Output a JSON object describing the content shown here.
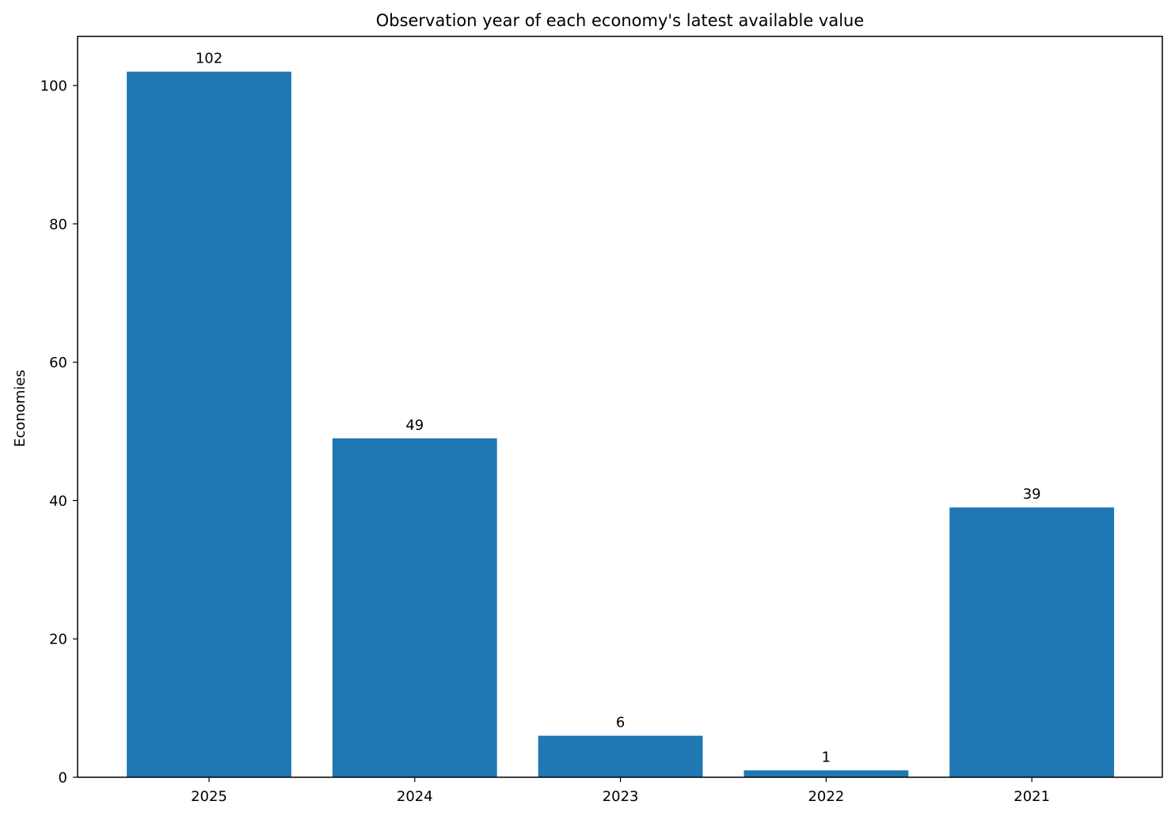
{
  "chart_data": {
    "type": "bar",
    "title": "Observation year of each economy's latest available value",
    "xlabel": "",
    "ylabel": "Economies",
    "categories": [
      "2025",
      "2024",
      "2023",
      "2022",
      "2021"
    ],
    "values": [
      102,
      49,
      6,
      1,
      39
    ],
    "data_labels": [
      "102",
      "49",
      "6",
      "1",
      "39"
    ],
    "ylim": [
      0,
      107.1
    ],
    "yticks": [
      0,
      20,
      40,
      60,
      80,
      100
    ],
    "ytick_labels": [
      "0",
      "20",
      "40",
      "60",
      "80",
      "100"
    ],
    "grid": false,
    "legend": "none",
    "bar_color": "#1f77b4"
  }
}
